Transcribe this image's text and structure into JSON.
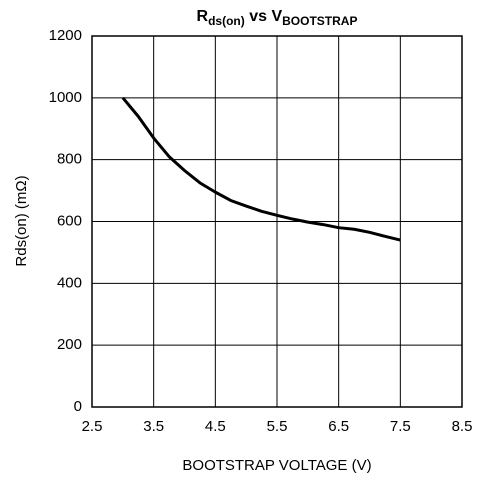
{
  "chart_data": {
    "type": "line",
    "title": [
      "R",
      "ds(on)",
      " vs V",
      "BOOTSTRAP"
    ],
    "x_label": "BOOTSTRAP VOLTAGE (V)",
    "y_label": "Rds(on) (mΩ)",
    "x": [
      3.0,
      3.25,
      3.5,
      3.75,
      4.0,
      4.25,
      4.5,
      4.75,
      5.0,
      5.25,
      5.5,
      5.75,
      6.0,
      6.25,
      6.5,
      6.75,
      7.0,
      7.25,
      7.5
    ],
    "series": [
      {
        "color": "#000000",
        "values": [
          1000,
          940,
          870,
          810,
          765,
          725,
          695,
          668,
          650,
          633,
          620,
          608,
          598,
          590,
          580,
          575,
          565,
          552,
          540
        ]
      }
    ],
    "xlim": [
      2.5,
      8.5
    ],
    "xticks": [
      2.5,
      3.5,
      4.5,
      5.5,
      6.5,
      7.5,
      8.5
    ],
    "ylim": [
      0,
      1200
    ],
    "yticks": [
      0,
      200,
      400,
      600,
      800,
      1000,
      1200
    ],
    "grid": true
  }
}
